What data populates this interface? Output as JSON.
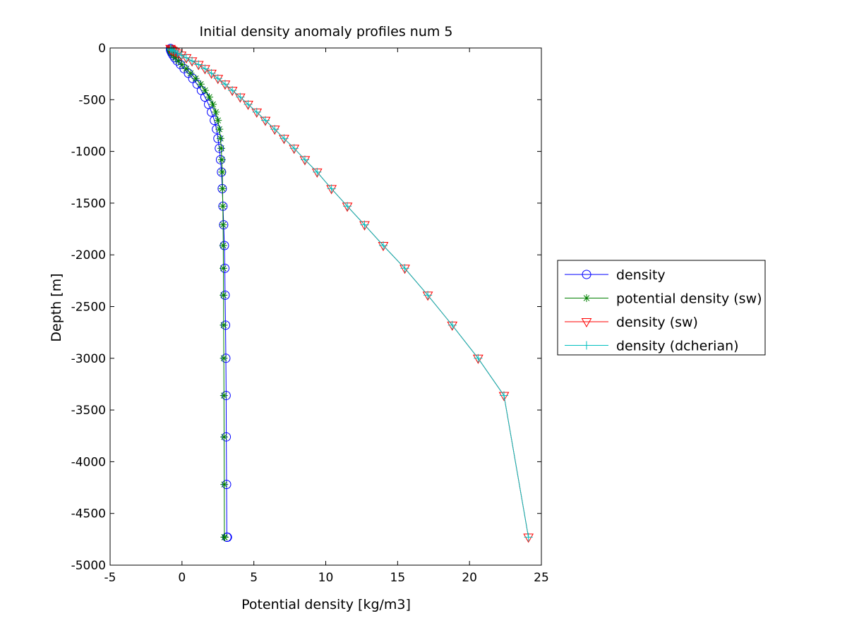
{
  "chart_data": {
    "type": "line",
    "title": "Initial density anomaly profiles num 5",
    "xlabel": "Potential density [kg/m3]",
    "ylabel": "Depth [m]",
    "xlim": [
      -5,
      25
    ],
    "ylim": [
      -5000,
      0
    ],
    "xticks": [
      -5,
      0,
      5,
      10,
      15,
      20,
      25
    ],
    "yticks": [
      0,
      -500,
      -1000,
      -1500,
      -2000,
      -2500,
      -3000,
      -3500,
      -4000,
      -4500,
      -5000
    ],
    "grid": false,
    "legend_position": "outside-right",
    "series": [
      {
        "name": "density",
        "color": "#0000ff",
        "marker": "circle",
        "x": [
          -0.8,
          -0.8,
          -0.78,
          -0.75,
          -0.7,
          -0.62,
          -0.5,
          -0.33,
          -0.1,
          0.15,
          0.45,
          0.75,
          1.05,
          1.35,
          1.6,
          1.85,
          2.05,
          2.25,
          2.4,
          2.5,
          2.6,
          2.68,
          2.75,
          2.8,
          2.85,
          2.9,
          2.95,
          2.98,
          3.0,
          3.03,
          3.05,
          3.07,
          3.08,
          3.1,
          3.12,
          3.14,
          3.16
        ],
        "y": [
          -5,
          -15,
          -25,
          -35,
          -50,
          -70,
          -95,
          -125,
          -160,
          -200,
          -245,
          -295,
          -350,
          -410,
          -475,
          -545,
          -620,
          -700,
          -785,
          -875,
          -970,
          -1080,
          -1200,
          -1360,
          -1530,
          -1710,
          -1910,
          -2130,
          -2390,
          -2680,
          -3000,
          -3360,
          -3760,
          -4220,
          -4730,
          -4730,
          -4730
        ]
      },
      {
        "name": "potential density (sw)",
        "color": "#008000",
        "marker": "star",
        "x": [
          -0.8,
          -0.8,
          -0.78,
          -0.75,
          -0.7,
          -0.6,
          -0.45,
          -0.25,
          0.0,
          0.3,
          0.6,
          0.95,
          1.3,
          1.6,
          1.9,
          2.15,
          2.35,
          2.5,
          2.6,
          2.68,
          2.73,
          2.77,
          2.8,
          2.82,
          2.84,
          2.86,
          2.87,
          2.88,
          2.89,
          2.9,
          2.91,
          2.92,
          2.93,
          2.94,
          2.95,
          2.96,
          2.97
        ],
        "y": [
          -5,
          -15,
          -25,
          -35,
          -50,
          -70,
          -95,
          -125,
          -160,
          -200,
          -245,
          -295,
          -350,
          -410,
          -475,
          -545,
          -620,
          -700,
          -785,
          -875,
          -970,
          -1080,
          -1200,
          -1360,
          -1530,
          -1710,
          -1910,
          -2130,
          -2390,
          -2680,
          -3000,
          -3360,
          -3760,
          -4220,
          -4730,
          -4730,
          -4730
        ]
      },
      {
        "name": "density (sw)",
        "color": "#ff0000",
        "marker": "triangle-down",
        "x": [
          -0.8,
          -0.75,
          -0.65,
          -0.5,
          -0.3,
          -0.05,
          0.3,
          0.7,
          1.15,
          1.6,
          2.05,
          2.5,
          3.0,
          3.5,
          4.05,
          4.6,
          5.2,
          5.8,
          6.45,
          7.1,
          7.8,
          8.55,
          9.4,
          10.4,
          11.5,
          12.7,
          14.0,
          15.5,
          17.1,
          18.8,
          20.6,
          22.4,
          24.1
        ],
        "y": [
          -5,
          -15,
          -25,
          -35,
          -50,
          -70,
          -95,
          -125,
          -160,
          -200,
          -245,
          -295,
          -350,
          -410,
          -475,
          -545,
          -620,
          -700,
          -785,
          -875,
          -970,
          -1080,
          -1200,
          -1360,
          -1530,
          -1710,
          -1910,
          -2130,
          -2390,
          -2680,
          -3000,
          -3360,
          -4730
        ]
      },
      {
        "name": "density (dcherian)",
        "color": "#00bfbf",
        "marker": "plus",
        "x": [
          -0.8,
          -0.75,
          -0.65,
          -0.5,
          -0.3,
          -0.05,
          0.3,
          0.7,
          1.15,
          1.6,
          2.05,
          2.5,
          3.0,
          3.5,
          4.05,
          4.6,
          5.2,
          5.8,
          6.45,
          7.1,
          7.8,
          8.55,
          9.4,
          10.4,
          11.5,
          12.7,
          14.0,
          15.5,
          17.1,
          18.8,
          20.6,
          22.4,
          24.1
        ],
        "y": [
          -5,
          -15,
          -25,
          -35,
          -50,
          -70,
          -95,
          -125,
          -160,
          -200,
          -245,
          -295,
          -350,
          -410,
          -475,
          -545,
          -620,
          -700,
          -785,
          -875,
          -970,
          -1080,
          -1200,
          -1360,
          -1530,
          -1710,
          -1910,
          -2130,
          -2390,
          -2680,
          -3000,
          -3360,
          -4730
        ]
      }
    ]
  }
}
